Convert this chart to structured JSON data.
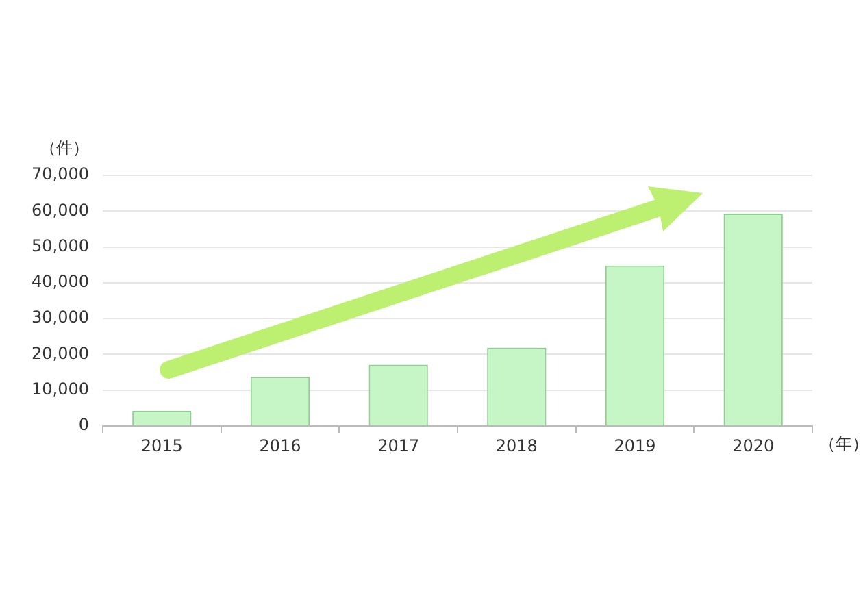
{
  "chart_data": {
    "type": "bar",
    "xlabel": "（年）",
    "ylabel": "（件）",
    "categories": [
      "2015",
      "2016",
      "2017",
      "2018",
      "2019",
      "2020"
    ],
    "values": [
      4200,
      13700,
      17100,
      21900,
      44800,
      59300
    ],
    "color": "#c6f5c6",
    "ylim": [
      0,
      70000
    ],
    "yticks": [
      {
        "value": 0,
        "label": "0"
      },
      {
        "value": 10000,
        "label": "10,000"
      },
      {
        "value": 20000,
        "label": "20,000"
      },
      {
        "value": 30000,
        "label": "30,000"
      },
      {
        "value": 40000,
        "label": "40,000"
      },
      {
        "value": 50000,
        "label": "50,000"
      },
      {
        "value": 60000,
        "label": "60,000"
      },
      {
        "value": 70000,
        "label": "70,000"
      }
    ],
    "grid": "y",
    "legend": false
  }
}
